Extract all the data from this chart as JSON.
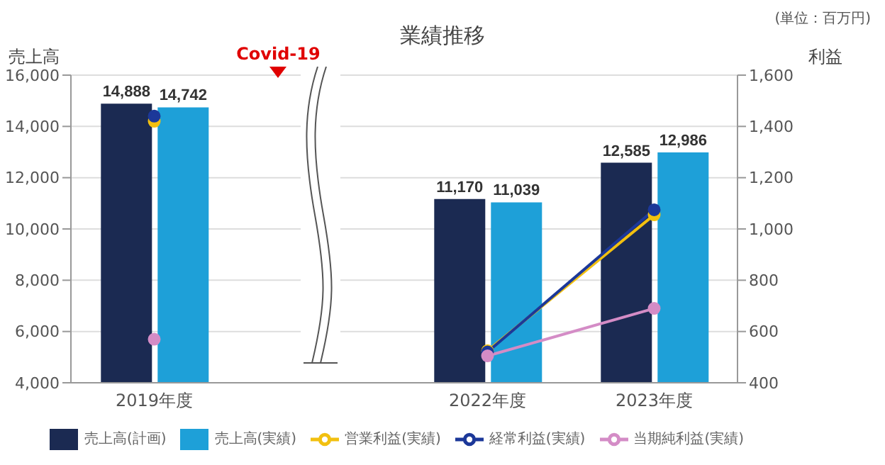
{
  "chart_data": {
    "type": "bar",
    "title": "業績推移",
    "ylabel": "売上高",
    "y2label": "利益",
    "annotations": [
      "(単位：百万円)",
      "Covid-19"
    ],
    "categories": [
      "2019年度",
      null,
      "2022年度",
      "2023年度"
    ],
    "series": [
      {
        "name": "売上高(計画)",
        "color": "#1b2a52",
        "values": [
          14888,
          null,
          11170,
          12585
        ],
        "value_labels": [
          "14,888",
          null,
          "11,170",
          "12,585"
        ]
      },
      {
        "name": "売上高(実績)",
        "color": "#1ea0d8",
        "values": [
          14742,
          null,
          11039,
          12986
        ],
        "value_labels": [
          "14,742",
          null,
          "11,039",
          "12,986"
        ]
      },
      {
        "name": "営業利益(実績)",
        "type": "line",
        "axis": "y2",
        "color": "#f2c010",
        "values": [
          1420,
          null,
          525,
          1055
        ]
      },
      {
        "name": "経常利益(実績)",
        "type": "line",
        "axis": "y2",
        "color": "#1c3899",
        "values": [
          1440,
          null,
          520,
          1075
        ]
      },
      {
        "name": "当期純利益(実績)",
        "type": "line",
        "axis": "y2",
        "color": "#d48cc6",
        "values": [
          570,
          null,
          505,
          690
        ]
      }
    ],
    "ylim": [
      4000,
      16000
    ],
    "yticks": [
      {
        "value": 4000,
        "label": "4,000"
      },
      {
        "value": 6000,
        "label": "6,000"
      },
      {
        "value": 8000,
        "label": "8,000"
      },
      {
        "value": 10000,
        "label": "10,000"
      },
      {
        "value": 12000,
        "label": "12,000"
      },
      {
        "value": 14000,
        "label": "14,000"
      },
      {
        "value": 16000,
        "label": "16,000"
      }
    ],
    "y2lim": [
      400,
      1600
    ],
    "y2ticks": [
      400,
      600,
      800,
      {
        "value": 1000,
        "label": "1,000"
      },
      {
        "value": 1200,
        "label": "1,200"
      },
      {
        "value": 1400,
        "label": "1,400"
      },
      {
        "value": 1600,
        "label": "1,600"
      }
    ],
    "grid": "y",
    "legend": "bottom",
    "marker": "circle"
  }
}
